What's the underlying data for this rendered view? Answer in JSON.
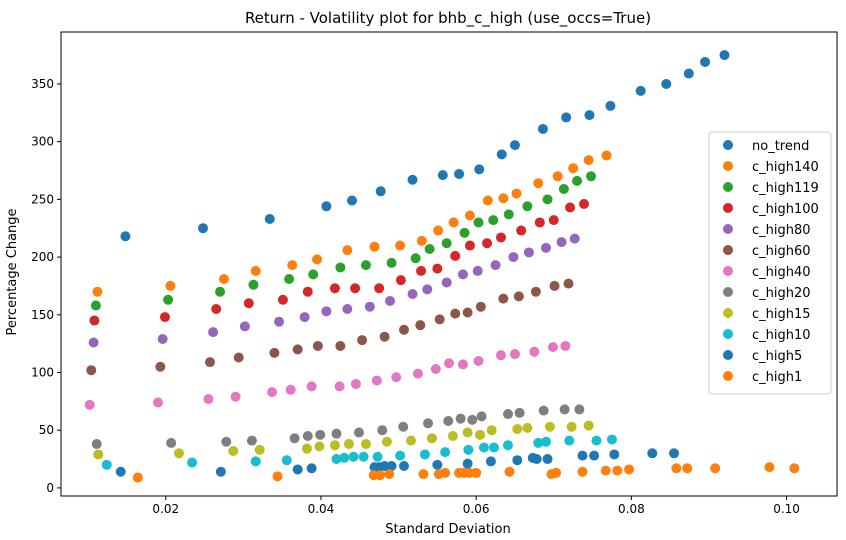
{
  "chart_data": {
    "type": "scatter",
    "title": "Return - Volatility plot for bhb_c_high (use_occs=True)",
    "xlabel": "Standard Deviation",
    "ylabel": "Percentage Change",
    "xlim": [
      0.0065,
      0.1065
    ],
    "ylim": [
      -7,
      395
    ],
    "xticks": [
      0.02,
      0.04,
      0.06,
      0.08,
      0.1
    ],
    "xtick_labels": [
      "0.02",
      "0.04",
      "0.06",
      "0.08",
      "0.10"
    ],
    "yticks": [
      0,
      50,
      100,
      150,
      200,
      250,
      300,
      350
    ],
    "ytick_labels": [
      "0",
      "50",
      "100",
      "150",
      "200",
      "250",
      "300",
      "350"
    ],
    "grid": false,
    "legend_position": "center-right",
    "series": [
      {
        "name": "no_trend",
        "color": "#1f77b4",
        "points": [
          [
            0.0148,
            218
          ],
          [
            0.0248,
            225
          ],
          [
            0.0334,
            233
          ],
          [
            0.0407,
            244
          ],
          [
            0.044,
            249
          ],
          [
            0.0477,
            257
          ],
          [
            0.0518,
            267
          ],
          [
            0.0557,
            271
          ],
          [
            0.0578,
            272
          ],
          [
            0.0604,
            276
          ],
          [
            0.0633,
            289
          ],
          [
            0.065,
            297
          ],
          [
            0.0686,
            311
          ],
          [
            0.0716,
            321
          ],
          [
            0.0746,
            323
          ],
          [
            0.0773,
            331
          ],
          [
            0.0812,
            344
          ],
          [
            0.0845,
            350
          ],
          [
            0.0874,
            359
          ],
          [
            0.0895,
            369
          ],
          [
            0.092,
            375
          ]
        ]
      },
      {
        "name": "c_high140",
        "color": "#ff7f0e",
        "points": [
          [
            0.0112,
            170
          ],
          [
            0.0206,
            175
          ],
          [
            0.0275,
            181
          ],
          [
            0.0316,
            188
          ],
          [
            0.0363,
            193
          ],
          [
            0.0395,
            198
          ],
          [
            0.0434,
            206
          ],
          [
            0.0469,
            209
          ],
          [
            0.0502,
            210
          ],
          [
            0.053,
            214
          ],
          [
            0.0551,
            223
          ],
          [
            0.0571,
            230
          ],
          [
            0.0592,
            236
          ],
          [
            0.0615,
            249
          ],
          [
            0.0635,
            251
          ],
          [
            0.0652,
            255
          ],
          [
            0.068,
            264
          ],
          [
            0.0705,
            270
          ],
          [
            0.0725,
            277
          ],
          [
            0.0745,
            284
          ],
          [
            0.0768,
            288
          ]
        ]
      },
      {
        "name": "c_high119",
        "color": "#2ca02c",
        "points": [
          [
            0.011,
            158
          ],
          [
            0.0203,
            163
          ],
          [
            0.027,
            170
          ],
          [
            0.0313,
            176
          ],
          [
            0.0359,
            181
          ],
          [
            0.039,
            185
          ],
          [
            0.0425,
            191
          ],
          [
            0.0458,
            193
          ],
          [
            0.0491,
            195
          ],
          [
            0.0522,
            199
          ],
          [
            0.054,
            207
          ],
          [
            0.0562,
            212
          ],
          [
            0.0585,
            221
          ],
          [
            0.0603,
            230
          ],
          [
            0.0622,
            232
          ],
          [
            0.0642,
            237
          ],
          [
            0.0666,
            244
          ],
          [
            0.0692,
            250
          ],
          [
            0.0713,
            259
          ],
          [
            0.073,
            266
          ],
          [
            0.0748,
            270
          ]
        ]
      },
      {
        "name": "c_high100",
        "color": "#d62728",
        "points": [
          [
            0.0108,
            145
          ],
          [
            0.0199,
            148
          ],
          [
            0.0265,
            155
          ],
          [
            0.0307,
            160
          ],
          [
            0.0351,
            163
          ],
          [
            0.0383,
            170
          ],
          [
            0.0418,
            173
          ],
          [
            0.0444,
            173
          ],
          [
            0.0475,
            173
          ],
          [
            0.0503,
            180
          ],
          [
            0.0529,
            188
          ],
          [
            0.055,
            190
          ],
          [
            0.0573,
            201
          ],
          [
            0.0592,
            210
          ],
          [
            0.0614,
            212
          ],
          [
            0.0632,
            217
          ],
          [
            0.0658,
            223
          ],
          [
            0.0682,
            230
          ],
          [
            0.07,
            232
          ],
          [
            0.0721,
            243
          ],
          [
            0.0739,
            246
          ]
        ]
      },
      {
        "name": "c_high80",
        "color": "#9467bd",
        "points": [
          [
            0.0107,
            126
          ],
          [
            0.0196,
            129
          ],
          [
            0.0261,
            135
          ],
          [
            0.0302,
            140
          ],
          [
            0.0346,
            144
          ],
          [
            0.0379,
            148
          ],
          [
            0.0407,
            153
          ],
          [
            0.0434,
            155
          ],
          [
            0.0463,
            157
          ],
          [
            0.0489,
            162
          ],
          [
            0.0518,
            168
          ],
          [
            0.0537,
            172
          ],
          [
            0.0562,
            178
          ],
          [
            0.0583,
            185
          ],
          [
            0.0602,
            188
          ],
          [
            0.0625,
            193
          ],
          [
            0.0648,
            200
          ],
          [
            0.0668,
            204
          ],
          [
            0.069,
            208
          ],
          [
            0.071,
            213
          ],
          [
            0.0727,
            216
          ]
        ]
      },
      {
        "name": "c_high60",
        "color": "#8c564b",
        "points": [
          [
            0.0104,
            102
          ],
          [
            0.0193,
            105
          ],
          [
            0.0257,
            109
          ],
          [
            0.0294,
            113
          ],
          [
            0.034,
            117
          ],
          [
            0.037,
            120
          ],
          [
            0.0396,
            123
          ],
          [
            0.0425,
            123
          ],
          [
            0.0453,
            128
          ],
          [
            0.0482,
            131
          ],
          [
            0.0507,
            137
          ],
          [
            0.0528,
            141
          ],
          [
            0.0553,
            146
          ],
          [
            0.0573,
            151
          ],
          [
            0.0589,
            152
          ],
          [
            0.0606,
            157
          ],
          [
            0.0635,
            164
          ],
          [
            0.0655,
            166
          ],
          [
            0.0677,
            170
          ],
          [
            0.0701,
            175
          ],
          [
            0.0719,
            177
          ]
        ]
      },
      {
        "name": "c_high40",
        "color": "#e377c2",
        "points": [
          [
            0.0102,
            72
          ],
          [
            0.019,
            74
          ],
          [
            0.0255,
            77
          ],
          [
            0.029,
            79
          ],
          [
            0.0337,
            83
          ],
          [
            0.0361,
            85
          ],
          [
            0.0388,
            88
          ],
          [
            0.0424,
            88
          ],
          [
            0.0445,
            90
          ],
          [
            0.0472,
            93
          ],
          [
            0.0497,
            96
          ],
          [
            0.0525,
            99
          ],
          [
            0.0548,
            103
          ],
          [
            0.0565,
            108
          ],
          [
            0.0583,
            107
          ],
          [
            0.0603,
            110
          ],
          [
            0.0632,
            115
          ],
          [
            0.065,
            116
          ],
          [
            0.0675,
            118
          ],
          [
            0.0699,
            122
          ],
          [
            0.0715,
            123
          ]
        ]
      },
      {
        "name": "c_high20",
        "color": "#7f7f7f",
        "points": [
          [
            0.0111,
            38
          ],
          [
            0.0207,
            39
          ],
          [
            0.0278,
            40
          ],
          [
            0.0311,
            41
          ],
          [
            0.0366,
            43
          ],
          [
            0.0383,
            45
          ],
          [
            0.0399,
            46
          ],
          [
            0.042,
            47
          ],
          [
            0.0449,
            48
          ],
          [
            0.0479,
            50
          ],
          [
            0.0506,
            53
          ],
          [
            0.0538,
            56
          ],
          [
            0.0564,
            58
          ],
          [
            0.058,
            60
          ],
          [
            0.0595,
            59
          ],
          [
            0.0607,
            62
          ],
          [
            0.0641,
            64
          ],
          [
            0.0656,
            65
          ],
          [
            0.0687,
            67
          ],
          [
            0.0714,
            68
          ],
          [
            0.0733,
            68
          ]
        ]
      },
      {
        "name": "c_high15",
        "color": "#bcbd22",
        "points": [
          [
            0.0113,
            29
          ],
          [
            0.0217,
            30
          ],
          [
            0.0287,
            32
          ],
          [
            0.0321,
            33
          ],
          [
            0.0382,
            34
          ],
          [
            0.0398,
            36
          ],
          [
            0.0418,
            37
          ],
          [
            0.0436,
            38
          ],
          [
            0.0458,
            38
          ],
          [
            0.0485,
            40
          ],
          [
            0.0516,
            41
          ],
          [
            0.0543,
            43
          ],
          [
            0.057,
            45
          ],
          [
            0.0589,
            48
          ],
          [
            0.0605,
            46
          ],
          [
            0.062,
            50
          ],
          [
            0.0653,
            51
          ],
          [
            0.0666,
            52
          ],
          [
            0.0695,
            53
          ],
          [
            0.0723,
            53
          ],
          [
            0.0745,
            54
          ]
        ]
      },
      {
        "name": "c_high10",
        "color": "#17becf",
        "points": [
          [
            0.0124,
            20
          ],
          [
            0.0234,
            22
          ],
          [
            0.0316,
            23
          ],
          [
            0.0356,
            24
          ],
          [
            0.042,
            25
          ],
          [
            0.043,
            26
          ],
          [
            0.0442,
            27
          ],
          [
            0.0455,
            27
          ],
          [
            0.0473,
            27
          ],
          [
            0.0502,
            28
          ],
          [
            0.0534,
            29
          ],
          [
            0.056,
            31
          ],
          [
            0.059,
            33
          ],
          [
            0.061,
            35
          ],
          [
            0.0623,
            35
          ],
          [
            0.0641,
            37
          ],
          [
            0.068,
            39
          ],
          [
            0.069,
            40
          ],
          [
            0.072,
            41
          ],
          [
            0.0755,
            41
          ],
          [
            0.0775,
            42
          ]
        ]
      },
      {
        "name": "c_high5",
        "color": "#1f77b4",
        "points": [
          [
            0.0142,
            14
          ],
          [
            0.0271,
            14
          ],
          [
            0.037,
            16
          ],
          [
            0.0388,
            17
          ],
          [
            0.0469,
            18
          ],
          [
            0.0475,
            18
          ],
          [
            0.0482,
            19
          ],
          [
            0.0491,
            19
          ],
          [
            0.0507,
            19
          ],
          [
            0.055,
            20
          ],
          [
            0.0589,
            21
          ],
          [
            0.0619,
            23
          ],
          [
            0.0653,
            24
          ],
          [
            0.0673,
            26
          ],
          [
            0.0678,
            25
          ],
          [
            0.0692,
            25
          ],
          [
            0.0737,
            28
          ],
          [
            0.0752,
            28
          ],
          [
            0.0778,
            29
          ],
          [
            0.0827,
            30
          ],
          [
            0.0855,
            30
          ]
        ]
      },
      {
        "name": "c_high1",
        "color": "#ff7f0e",
        "points": [
          [
            0.0164,
            9
          ],
          [
            0.0344,
            10
          ],
          [
            0.0468,
            11
          ],
          [
            0.0476,
            11
          ],
          [
            0.0488,
            12
          ],
          [
            0.0532,
            12
          ],
          [
            0.0552,
            12
          ],
          [
            0.056,
            13
          ],
          [
            0.0578,
            13
          ],
          [
            0.0584,
            13
          ],
          [
            0.0591,
            13
          ],
          [
            0.06,
            13
          ],
          [
            0.0643,
            14
          ],
          [
            0.0697,
            12
          ],
          [
            0.0703,
            13
          ],
          [
            0.0737,
            14
          ],
          [
            0.0767,
            15
          ],
          [
            0.0782,
            15
          ],
          [
            0.0797,
            16
          ],
          [
            0.0858,
            17
          ],
          [
            0.0872,
            17
          ],
          [
            0.0908,
            17
          ],
          [
            0.0978,
            18
          ],
          [
            0.101,
            17
          ]
        ]
      }
    ]
  }
}
